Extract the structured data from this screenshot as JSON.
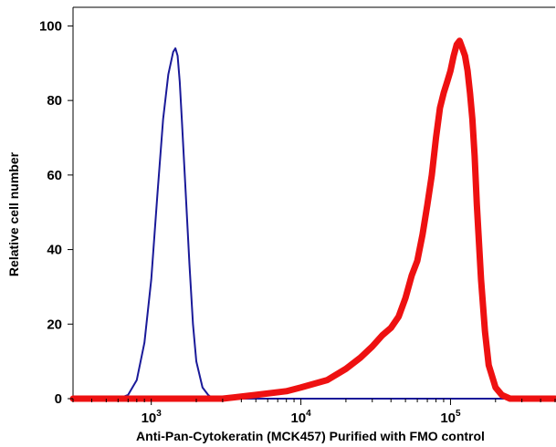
{
  "chart_data": {
    "type": "line",
    "title": "",
    "xlabel": "Anti-Pan-Cytokeratin (MCK457) Purified with FMO control",
    "ylabel": "Relative cell number",
    "xscale": "log",
    "xlim": [
      300,
      500000
    ],
    "ylim": [
      0,
      105
    ],
    "x_ticks": [
      {
        "base": "10",
        "exp": "3",
        "value": 1000
      },
      {
        "base": "10",
        "exp": "4",
        "value": 10000
      },
      {
        "base": "10",
        "exp": "5",
        "value": 100000
      }
    ],
    "y_ticks": [
      {
        "label": "0",
        "value": 0
      },
      {
        "label": "20",
        "value": 20
      },
      {
        "label": "40",
        "value": 40
      },
      {
        "label": "60",
        "value": 60
      },
      {
        "label": "80",
        "value": 80
      },
      {
        "label": "100",
        "value": 100
      }
    ],
    "grid": false,
    "legend": "none",
    "series": [
      {
        "color": "#1a1a99",
        "line_width": 2,
        "x": [
          300,
          600,
          700,
          800,
          900,
          1000,
          1100,
          1200,
          1300,
          1400,
          1450,
          1500,
          1550,
          1600,
          1700,
          1800,
          1900,
          2000,
          2200,
          2400,
          2600,
          3000,
          500000
        ],
        "y": [
          0,
          0,
          1,
          5,
          15,
          32,
          55,
          75,
          87,
          93,
          94,
          92,
          85,
          75,
          55,
          36,
          20,
          10,
          3,
          1,
          0,
          0,
          0
        ]
      },
      {
        "color": "#ee1111",
        "line_width": 7,
        "x": [
          300,
          3000,
          5000,
          8000,
          10000,
          15000,
          20000,
          25000,
          30000,
          35000,
          40000,
          45000,
          50000,
          55000,
          60000,
          65000,
          70000,
          75000,
          80000,
          85000,
          90000,
          95000,
          100000,
          105000,
          110000,
          115000,
          120000,
          125000,
          130000,
          135000,
          140000,
          145000,
          150000,
          160000,
          170000,
          180000,
          200000,
          220000,
          250000,
          500000
        ],
        "y": [
          0,
          0,
          1,
          2,
          3,
          5,
          8,
          11,
          14,
          17,
          19,
          22,
          27,
          33,
          37,
          44,
          52,
          60,
          70,
          78,
          82,
          85,
          88,
          92,
          95,
          96,
          94,
          92,
          88,
          82,
          75,
          65,
          52,
          32,
          18,
          9,
          3,
          1,
          0,
          0
        ]
      }
    ]
  }
}
